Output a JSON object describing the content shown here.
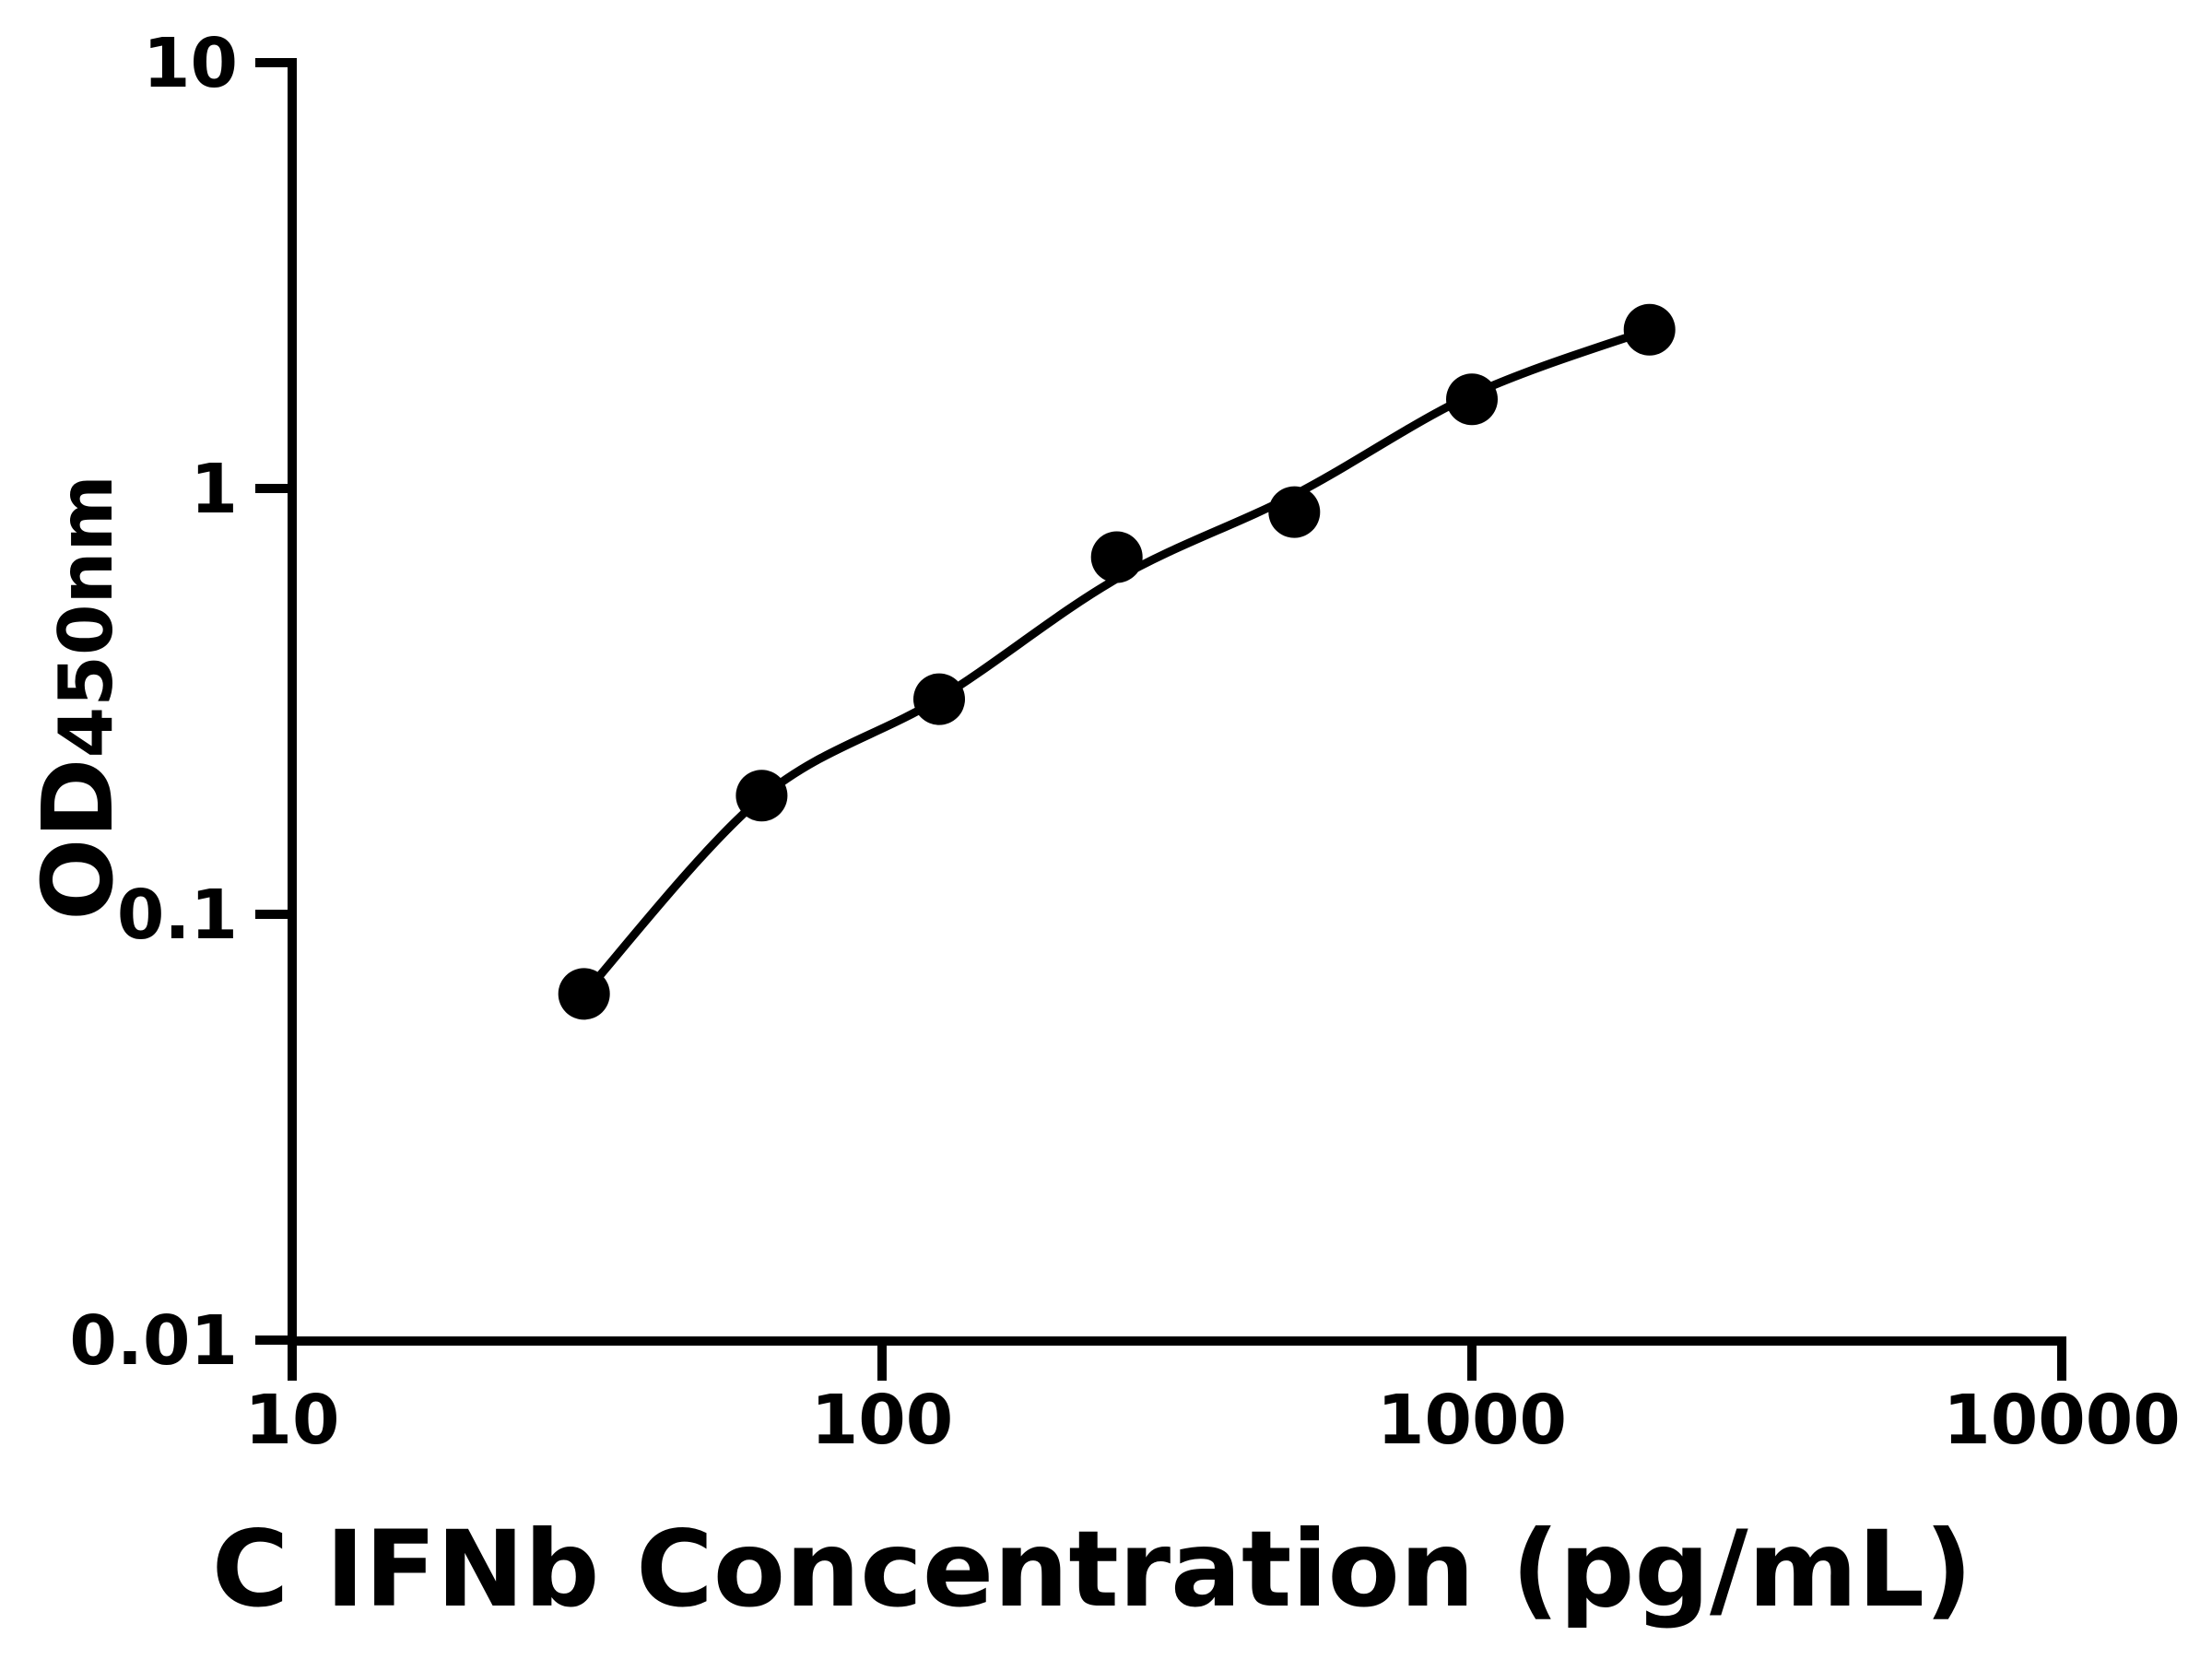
{
  "chart_data": {
    "type": "scatter",
    "title": "",
    "xlabel": "C IFNb Concentration (pg/mL)",
    "ylabel": "OD450nm",
    "ylabel_main": "OD",
    "ylabel_sub": "450nm",
    "x_scale": "log",
    "y_scale": "log",
    "xlim": [
      10,
      10000
    ],
    "ylim": [
      0.01,
      10
    ],
    "grid": false,
    "legend": "none",
    "x_tick_labels": [
      "10",
      "100",
      "1000",
      "10000"
    ],
    "y_tick_labels": [
      "10",
      "1",
      "0.1",
      "0.01"
    ],
    "series": [
      {
        "name": "standard-curve-points",
        "x": [
          31.25,
          62.5,
          125,
          250,
          500,
          1000,
          2000
        ],
        "y": [
          0.065,
          0.19,
          0.32,
          0.69,
          0.88,
          1.62,
          2.36
        ]
      }
    ],
    "fit_curve": {
      "x": [
        31.25,
        62.5,
        125,
        250,
        500,
        1000,
        2000
      ],
      "y": [
        0.065,
        0.188,
        0.321,
        0.614,
        0.966,
        1.66,
        2.36
      ]
    },
    "marker_color": "#000000",
    "line_color": "#000000",
    "axis_color": "#000000"
  }
}
